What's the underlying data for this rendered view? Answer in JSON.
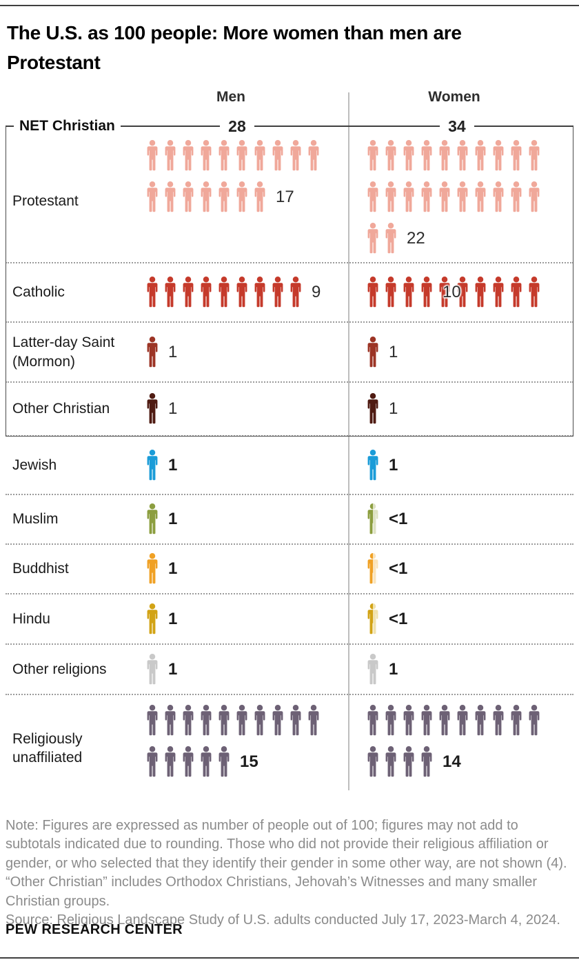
{
  "header": {
    "title": "The U.S. as 100 people: More women than men are Protestant",
    "col_men": "Men",
    "col_women": "Women"
  },
  "net_bracket": {
    "label": "NET Christian",
    "men": "28",
    "women": "34"
  },
  "chart_data": {
    "type": "pictogram",
    "unit": "people out of 100",
    "series": [
      "Men",
      "Women"
    ],
    "net_christian": {
      "men": 28,
      "women": 34
    },
    "rows": [
      {
        "label": "Protestant",
        "color": "#F0A89A",
        "in_net": true,
        "bold": false,
        "men": {
          "value": 17,
          "display": "17",
          "icons": 17
        },
        "women": {
          "value": 22,
          "display": "22",
          "icons": 22
        }
      },
      {
        "label": "Catholic",
        "color": "#C53A2B",
        "in_net": true,
        "bold": false,
        "men": {
          "value": 9,
          "display": "9",
          "icons": 9
        },
        "women": {
          "value": 10,
          "display": "10",
          "icons": 10,
          "overlap": true
        }
      },
      {
        "label": "Latter-day Saint (Mormon)",
        "color": "#9C3425",
        "in_net": true,
        "bold": false,
        "men": {
          "value": 1,
          "display": "1",
          "icons": 1
        },
        "women": {
          "value": 1,
          "display": "1",
          "icons": 1
        }
      },
      {
        "label": "Other Christian",
        "color": "#4F1B12",
        "in_net": true,
        "bold": false,
        "men": {
          "value": 1,
          "display": "1",
          "icons": 1
        },
        "women": {
          "value": 1,
          "display": "1",
          "icons": 1
        }
      },
      {
        "label": "Jewish",
        "color": "#1B9CD8",
        "in_net": false,
        "bold": true,
        "men": {
          "value": 1,
          "display": "1",
          "icons": 1
        },
        "women": {
          "value": 1,
          "display": "1",
          "icons": 1
        }
      },
      {
        "label": "Muslim",
        "color": "#8C9E3F",
        "pale": "#DEE2C3",
        "in_net": false,
        "bold": true,
        "men": {
          "value": 1,
          "display": "1",
          "icons": 1
        },
        "women": {
          "value": 0.5,
          "display": "<1",
          "icons": 1,
          "half": true
        }
      },
      {
        "label": "Buddhist",
        "color": "#F0A125",
        "pale": "#FAE4BC",
        "in_net": false,
        "bold": true,
        "men": {
          "value": 1,
          "display": "1",
          "icons": 1
        },
        "women": {
          "value": 0.5,
          "display": "<1",
          "icons": 1,
          "half": true
        }
      },
      {
        "label": "Hindu",
        "color": "#D2A315",
        "pale": "#F0E2AE",
        "in_net": false,
        "bold": true,
        "men": {
          "value": 1,
          "display": "1",
          "icons": 1
        },
        "women": {
          "value": 0.5,
          "display": "<1",
          "icons": 1,
          "half": true
        }
      },
      {
        "label": "Other religions",
        "color": "#C9C9C9",
        "in_net": false,
        "bold": true,
        "men": {
          "value": 1,
          "display": "1",
          "icons": 1
        },
        "women": {
          "value": 1,
          "display": "1",
          "icons": 1
        }
      },
      {
        "label": "Religiously unaffiliated",
        "color": "#6D6175",
        "in_net": false,
        "bold": true,
        "men": {
          "value": 15,
          "display": "15",
          "icons": 15
        },
        "women": {
          "value": 14,
          "display": "14",
          "icons": 14
        }
      }
    ]
  },
  "footer": {
    "note": "Note: Figures are expressed as number of people out of 100; figures may not add to subtotals indicated due to rounding. Those who did not provide their religious affiliation or gender, or who selected that they identify their gender in some other way, are not shown (4). “Other Christian” includes Orthodox Christians, Jehovah’s Witnesses and many smaller Christian groups.",
    "source": "Source: Religious Landscape Study of U.S. adults conducted July 17, 2023-March 4, 2024.",
    "brand": "PEW RESEARCH CENTER"
  }
}
